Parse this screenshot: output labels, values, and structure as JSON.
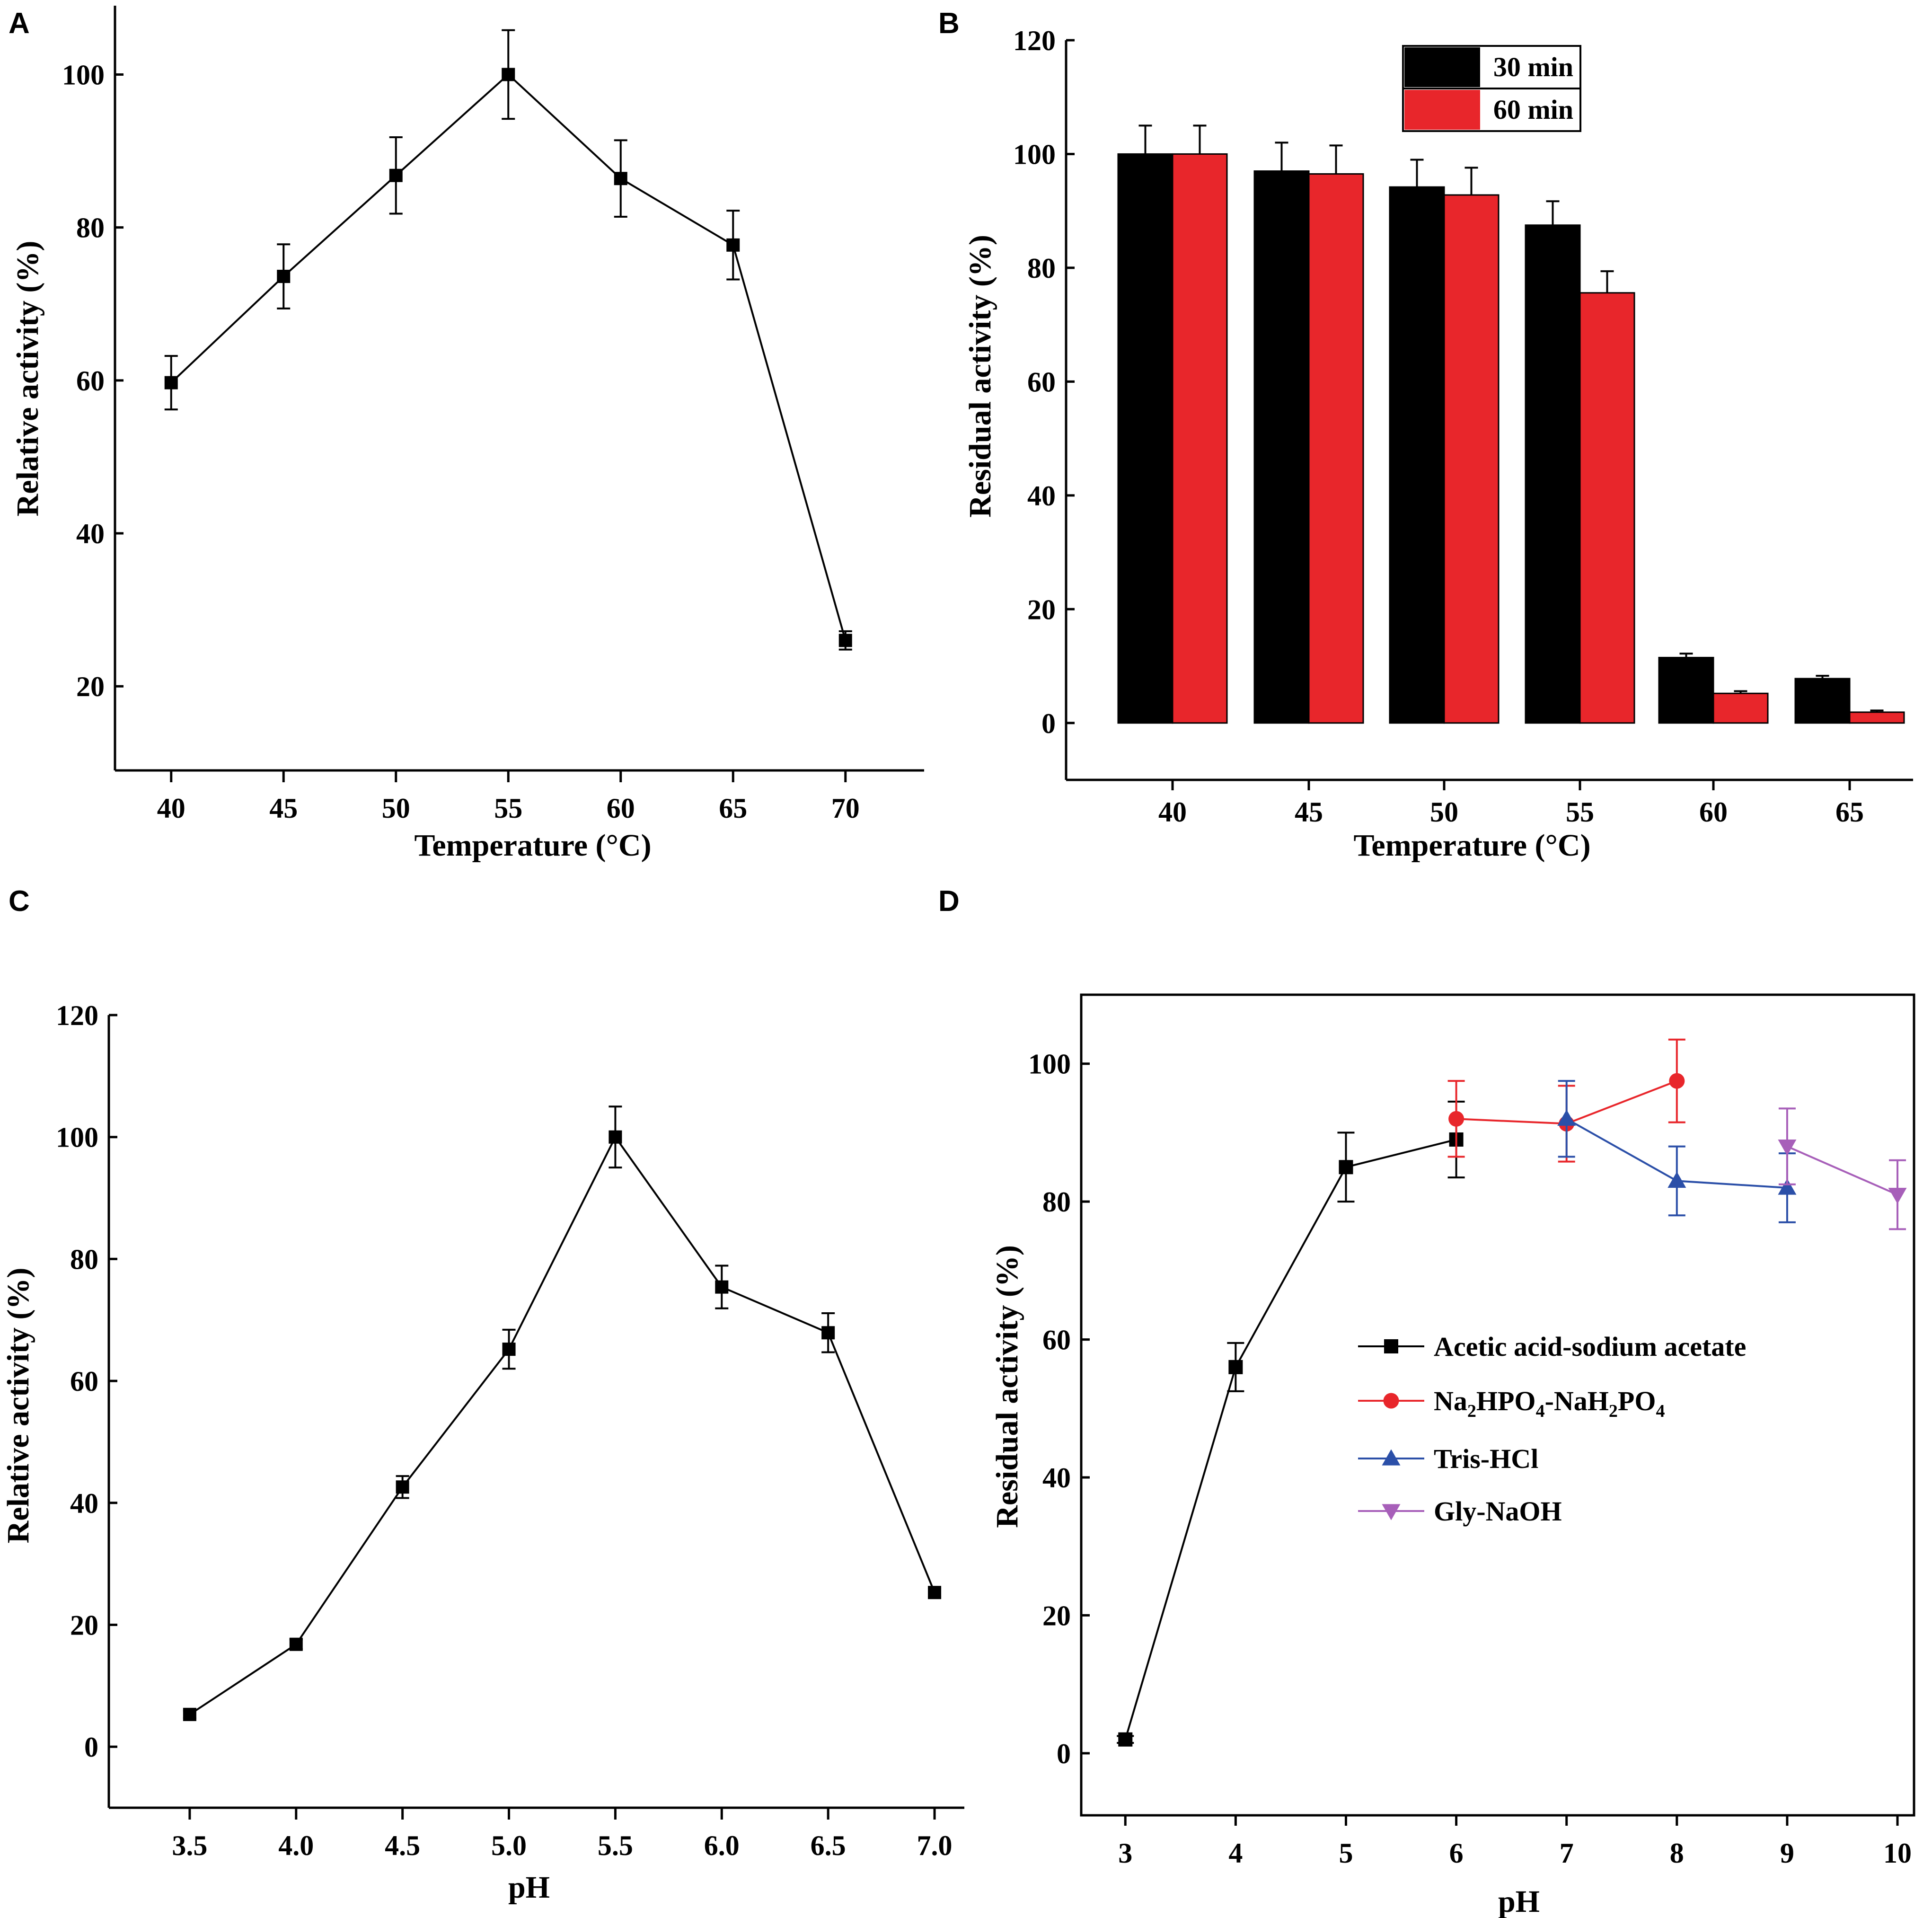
{
  "figure": {
    "panels": [
      "A",
      "B",
      "C",
      "D"
    ]
  },
  "colors": {
    "black": "#000000",
    "red": "#e8262b",
    "blue": "#2b4fa8",
    "purple": "#a75fb9"
  },
  "chart_data": [
    {
      "panel": "A",
      "type": "line",
      "xlabel": "Temperature (°C)",
      "ylabel": "Relative activity (%)",
      "x": [
        40,
        45,
        50,
        55,
        60,
        65,
        70
      ],
      "x_tick_labels": [
        "40",
        "45",
        "50",
        "55",
        "60",
        "65",
        "70"
      ],
      "y_ticks": [
        20,
        40,
        60,
        80,
        100
      ],
      "y_tick_labels": [
        "20",
        "40",
        "60",
        "80",
        "100"
      ],
      "xlim": [
        37.5,
        73.5
      ],
      "ylim": [
        9,
        109
      ],
      "series": [
        {
          "name": "Relative activity",
          "marker": "square",
          "color": "#000000",
          "values": [
            59.7,
            73.6,
            86.8,
            100,
            86.4,
            77.7,
            26.0
          ],
          "errors": [
            3.5,
            4.2,
            5.0,
            5.8,
            5.0,
            4.5,
            1.2
          ]
        }
      ]
    },
    {
      "panel": "B",
      "type": "bar",
      "xlabel": "Temperature (°C)",
      "ylabel": "Residual activity (%)",
      "categories": [
        "40",
        "45",
        "50",
        "55",
        "60",
        "65"
      ],
      "y_ticks": [
        0,
        20,
        40,
        60,
        80,
        100,
        120
      ],
      "y_tick_labels": [
        "0",
        "20",
        "40",
        "60",
        "80",
        "100",
        "120"
      ],
      "ylim": [
        -10,
        120
      ],
      "legend_position": "top-center",
      "series": [
        {
          "name": "30 min",
          "color": "#000000",
          "values": [
            100,
            97,
            94.2,
            87.5,
            11.5,
            7.8
          ],
          "errors": [
            5.0,
            5.0,
            4.8,
            4.2,
            0.7,
            0.5
          ]
        },
        {
          "name": "60 min",
          "color": "#e8262b",
          "values": [
            100,
            96.5,
            92.8,
            75.6,
            5.2,
            1.9
          ],
          "errors": [
            5.0,
            5.0,
            4.8,
            3.8,
            0.4,
            0.3
          ]
        }
      ]
    },
    {
      "panel": "C",
      "type": "line",
      "xlabel": "pH",
      "ylabel": "Relative activity (%)",
      "x": [
        3.5,
        4.0,
        4.5,
        5.0,
        5.5,
        6.0,
        6.5,
        7.0
      ],
      "x_tick_labels": [
        "3.5",
        "4.0",
        "4.5",
        "5.0",
        "5.5",
        "6.0",
        "6.5",
        "7.0"
      ],
      "y_ticks": [
        0,
        20,
        40,
        60,
        80,
        100,
        120
      ],
      "y_tick_labels": [
        "0",
        "20",
        "40",
        "60",
        "80",
        "100",
        "120"
      ],
      "xlim": [
        3.12,
        7.14
      ],
      "ylim": [
        -10,
        120
      ],
      "series": [
        {
          "name": "Relative activity",
          "marker": "square",
          "color": "#000000",
          "values": [
            5.3,
            16.8,
            42.6,
            65.2,
            100,
            75.4,
            67.9,
            25.3
          ],
          "errors": [
            0.6,
            0.8,
            1.8,
            3.2,
            5.0,
            3.5,
            3.2,
            0.7
          ]
        }
      ]
    },
    {
      "panel": "D",
      "type": "line",
      "xlabel": "pH",
      "ylabel": "Residual activity (%)",
      "x_ticks": [
        3,
        4,
        5,
        6,
        7,
        8,
        9,
        10
      ],
      "x_tick_labels": [
        "3",
        "4",
        "5",
        "6",
        "7",
        "8",
        "9",
        "10"
      ],
      "y_ticks": [
        0,
        20,
        40,
        60,
        80,
        100
      ],
      "y_tick_labels": [
        "0",
        "20",
        "40",
        "60",
        "80",
        "100"
      ],
      "xlim": [
        2.6,
        10.15
      ],
      "ylim": [
        -9,
        110
      ],
      "legend_position": "center-right",
      "series": [
        {
          "name": "Acetic acid-sodium acetate",
          "marker": "square",
          "color": "#000000",
          "x": [
            3,
            4,
            5,
            6
          ],
          "values": [
            2.0,
            56.0,
            85.0,
            89.0
          ],
          "errors": [
            0.5,
            3.5,
            5.0,
            5.5
          ]
        },
        {
          "name": "Na2HPO4-NaH2PO4",
          "marker": "circle",
          "color": "#e8262b",
          "label_parts": [
            "Na",
            "2",
            "HPO",
            "4",
            "-NaH",
            "2",
            "PO",
            "4"
          ],
          "x": [
            6,
            7,
            8
          ],
          "values": [
            92.0,
            91.3,
            97.5
          ],
          "errors": [
            5.5,
            5.5,
            6.0
          ]
        },
        {
          "name": "Tris-HCl",
          "marker": "triangle-up",
          "color": "#2b4fa8",
          "x": [
            7,
            8,
            9
          ],
          "values": [
            92.0,
            83.0,
            82.0
          ],
          "errors": [
            5.5,
            5.0,
            5.0
          ]
        },
        {
          "name": "Gly-NaOH",
          "marker": "triangle-down",
          "color": "#a75fb9",
          "x": [
            9,
            10
          ],
          "values": [
            88.0,
            81.0
          ],
          "errors": [
            5.5,
            5.0
          ]
        }
      ]
    }
  ]
}
